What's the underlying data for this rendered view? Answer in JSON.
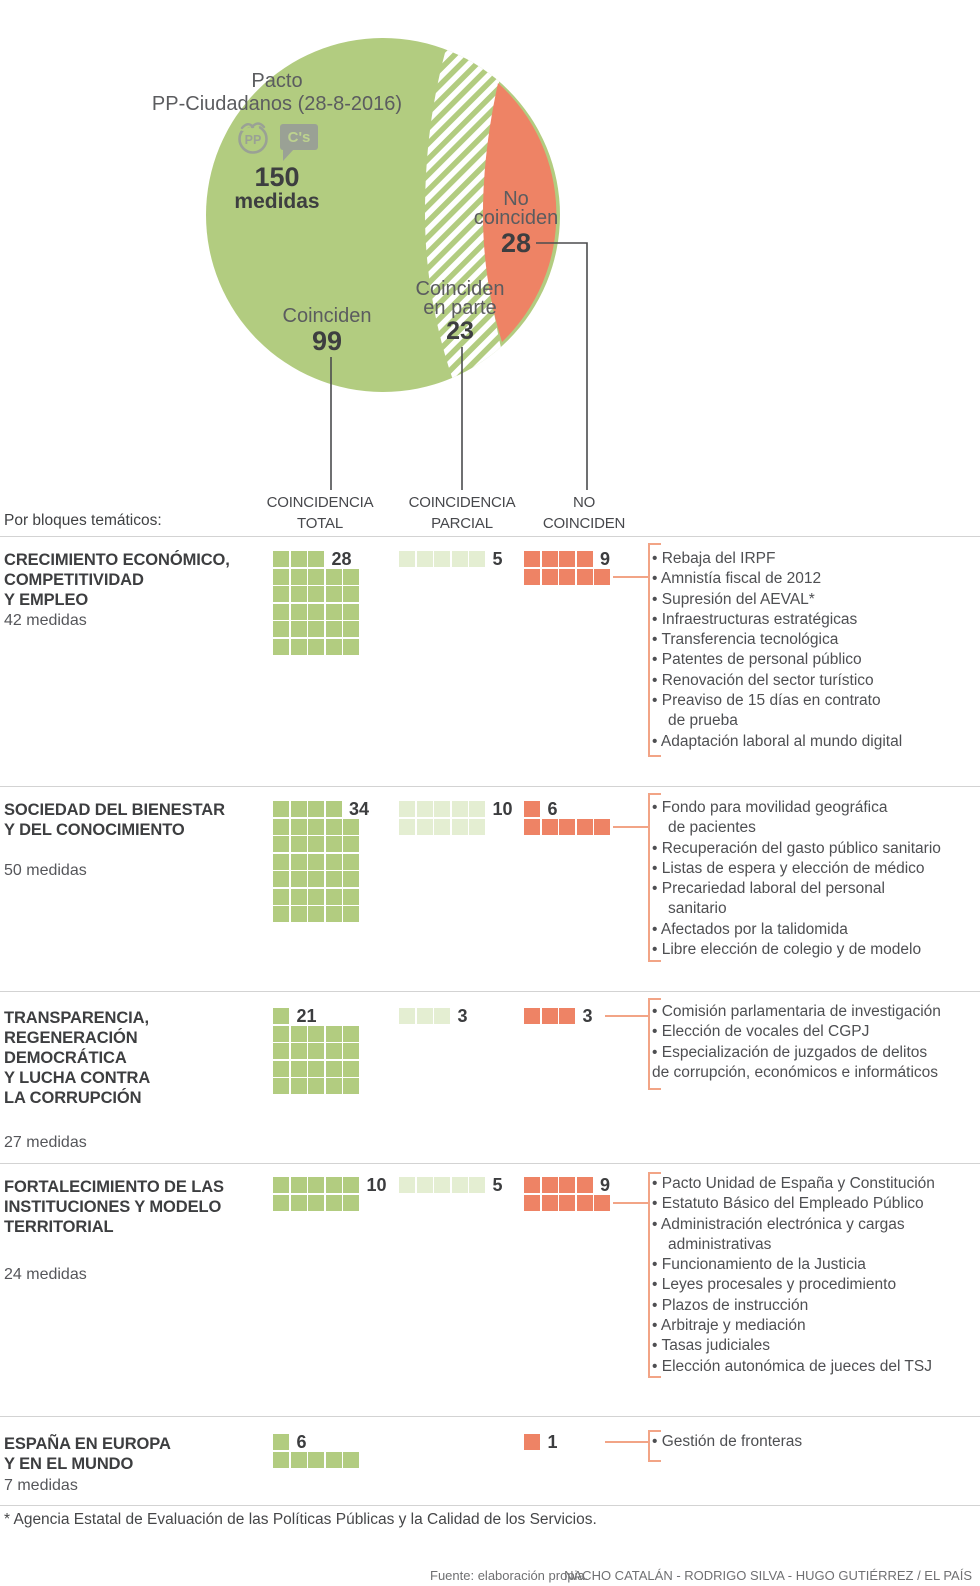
{
  "diagram": {
    "title_line1": "Pacto",
    "title_line2": "PP-Ciudadanos (28-8-2016)",
    "pp_logo": "PP",
    "cs_logo": "C's",
    "total_value": "150",
    "total_label": "medidas",
    "coinciden_label": "Coinciden",
    "coinciden_value": "99",
    "parcial_label_line1": "Coinciden",
    "parcial_label_line2": "en parte",
    "parcial_value": "23",
    "no_label_line1": "No",
    "no_label_line2": "coinciden",
    "no_value": "28"
  },
  "table_header": {
    "intro": "Por bloques temáticos:",
    "col_total_line1": "COINCIDENCIA",
    "col_total_line2": "TOTAL",
    "col_parcial_line1": "COINCIDENCIA",
    "col_parcial_line2": "PARCIAL",
    "col_no_line1": "NO",
    "col_no_line2": "COINCIDEN"
  },
  "colors": {
    "green": "#b2cc80",
    "pale_green": "#e4eed2",
    "orange": "#ee8365",
    "salmon_line": "#f2a486",
    "dark_line": "#4b4c4e"
  },
  "blocks": [
    {
      "title_lines": [
        "CRECIMIENTO ECONÓMICO,",
        "COMPETITIVIDAD",
        "Y EMPLEO"
      ],
      "subtitle": "42 medidas",
      "counts": {
        "total": 28,
        "parcial": 5,
        "no": 9
      },
      "list": [
        {
          "text": "Rebaja del IRPF",
          "bullet": true,
          "indent": false
        },
        {
          "text": "Amnistía fiscal de 2012",
          "bullet": true,
          "indent": false
        },
        {
          "text": "Supresión del AEVAL*",
          "bullet": true,
          "indent": false
        },
        {
          "text": "Infraestructuras estratégicas",
          "bullet": true,
          "indent": false
        },
        {
          "text": "Transferencia tecnológica",
          "bullet": true,
          "indent": false
        },
        {
          "text": "Patentes de personal público",
          "bullet": true,
          "indent": false
        },
        {
          "text": "Renovación del sector turístico",
          "bullet": true,
          "indent": false
        },
        {
          "text": "Preaviso de 15 días en contrato",
          "bullet": true,
          "indent": false
        },
        {
          "text": "de prueba",
          "bullet": false,
          "indent": true
        },
        {
          "text": "Adaptación laboral al mundo digital",
          "bullet": true,
          "indent": false
        }
      ]
    },
    {
      "title_lines": [
        "SOCIEDAD DEL BIENESTAR",
        "Y DEL CONOCIMIENTO"
      ],
      "subtitle": "50 medidas",
      "counts": {
        "total": 34,
        "parcial": 10,
        "no": 6
      },
      "list": [
        {
          "text": "Fondo para movilidad geográfica",
          "bullet": true,
          "indent": false
        },
        {
          "text": "de pacientes",
          "bullet": false,
          "indent": true
        },
        {
          "text": "Recuperación del gasto público sanitario",
          "bullet": true,
          "indent": false
        },
        {
          "text": "Listas de espera y elección de médico",
          "bullet": true,
          "indent": false
        },
        {
          "text": "Precariedad laboral del personal",
          "bullet": true,
          "indent": false
        },
        {
          "text": "sanitario",
          "bullet": false,
          "indent": true
        },
        {
          "text": "Afectados por la talidomida",
          "bullet": true,
          "indent": false
        },
        {
          "text": "Libre elección de colegio y de modelo",
          "bullet": true,
          "indent": false
        }
      ]
    },
    {
      "title_lines": [
        "TRANSPARENCIA,",
        "REGENERACIÓN",
        "DEMOCRÁTICA",
        "Y LUCHA CONTRA",
        "LA CORRUPCIÓN"
      ],
      "subtitle": "27 medidas",
      "counts": {
        "total": 21,
        "parcial": 3,
        "no": 3
      },
      "list": [
        {
          "text": "Comisión parlamentaria de investigación",
          "bullet": true,
          "indent": false
        },
        {
          "text": "Elección de vocales del CGPJ",
          "bullet": true,
          "indent": false
        },
        {
          "text": "Especialización de juzgados de delitos",
          "bullet": true,
          "indent": false
        },
        {
          "text": "de corrupción, económicos e informáticos",
          "bullet": false,
          "indent": false
        }
      ]
    },
    {
      "title_lines": [
        "FORTALECIMIENTO DE LAS",
        "INSTITUCIONES Y MODELO",
        "TERRITORIAL"
      ],
      "subtitle": "24 medidas",
      "counts": {
        "total": 10,
        "parcial": 5,
        "no": 9
      },
      "list": [
        {
          "text": "Pacto Unidad de España y Constitución",
          "bullet": true,
          "indent": false
        },
        {
          "text": "Estatuto Básico del Empleado Público",
          "bullet": true,
          "indent": false
        },
        {
          "text": "Administración electrónica y cargas",
          "bullet": true,
          "indent": false
        },
        {
          "text": "administrativas",
          "bullet": false,
          "indent": true
        },
        {
          "text": "Funcionamiento de la Justicia",
          "bullet": true,
          "indent": false
        },
        {
          "text": "Leyes procesales y procedimiento",
          "bullet": true,
          "indent": false
        },
        {
          "text": "Plazos de instrucción",
          "bullet": true,
          "indent": false
        },
        {
          "text": "Arbitraje y mediación",
          "bullet": true,
          "indent": false
        },
        {
          "text": "Tasas judiciales",
          "bullet": true,
          "indent": false
        },
        {
          "text": "Elección autonómica de jueces del TSJ",
          "bullet": true,
          "indent": false
        }
      ]
    },
    {
      "title_lines": [
        "ESPAÑA EN EUROPA",
        "Y EN EL MUNDO"
      ],
      "subtitle": "7 medidas",
      "counts": {
        "total": 6,
        "parcial": 0,
        "no": 1
      },
      "list": [
        {
          "text": "Gestión de fronteras",
          "bullet": true,
          "indent": false
        }
      ]
    }
  ],
  "footnote": "* Agencia Estatal de Evaluación de las Políticas Públicas y la Calidad de los Servicios.",
  "source": "Fuente: elaboración propia.",
  "credits": "NACHO CATALÁN - RODRIGO SILVA - HUGO GUTIÉRREZ / EL PAÍS",
  "chart_data": {
    "type": "waffle",
    "title": "Pacto PP-Ciudadanos (28-8-2016) — 150 medidas",
    "overall": {
      "coinciden": 99,
      "coinciden_en_parte": 23,
      "no_coinciden": 28,
      "total_medidas": 150
    },
    "categories": [
      "CRECIMIENTO ECONÓMICO, COMPETITIVIDAD Y EMPLEO",
      "SOCIEDAD DEL BIENESTAR Y DEL CONOCIMIENTO",
      "TRANSPARENCIA, REGENERACIÓN DEMOCRÁTICA Y LUCHA CONTRA LA CORRUPCIÓN",
      "FORTALECIMIENTO DE LAS INSTITUCIONES Y MODELO TERRITORIAL",
      "ESPAÑA EN EUROPA Y EN EL MUNDO"
    ],
    "category_totals": [
      42,
      50,
      27,
      24,
      7
    ],
    "series": [
      {
        "name": "Coincidencia total",
        "color": "#b2cc80",
        "values": [
          28,
          34,
          21,
          10,
          6
        ]
      },
      {
        "name": "Coincidencia parcial",
        "color": "#e4eed2",
        "values": [
          5,
          10,
          3,
          5,
          0
        ]
      },
      {
        "name": "No coinciden",
        "color": "#ee8365",
        "values": [
          9,
          6,
          3,
          9,
          1
        ]
      }
    ],
    "legend_position": "top",
    "grid": false
  }
}
